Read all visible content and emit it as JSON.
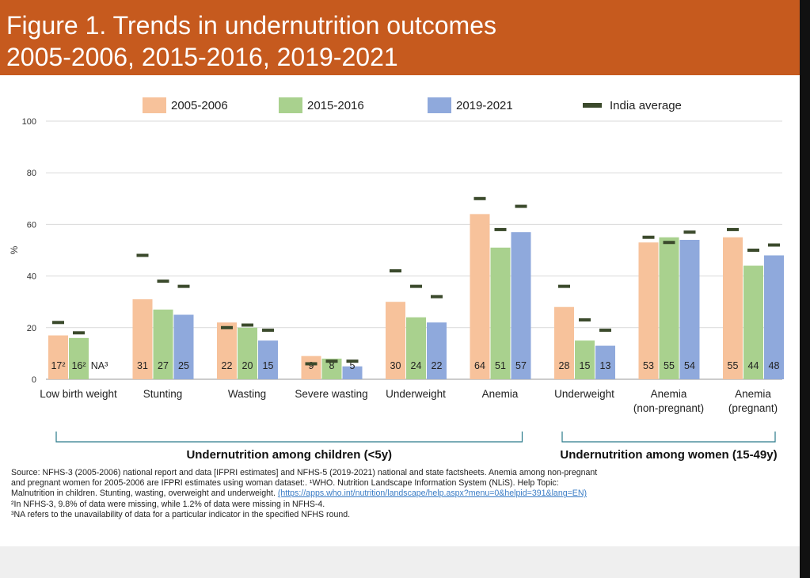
{
  "header": {
    "title_line1": "Figure 1. Trends in undernutrition outcomes",
    "title_line2": "2005-2006, 2015-2016, 2019-2021"
  },
  "chart_data": {
    "type": "bar",
    "ylabel": "%",
    "ylim": [
      0,
      100
    ],
    "yticks": [
      0,
      20,
      40,
      60,
      80,
      100
    ],
    "grid": true,
    "legend_position": "top",
    "series": [
      {
        "name": "2005-2006",
        "color": "#f7c29b"
      },
      {
        "name": "2015-2016",
        "color": "#a9d18e"
      },
      {
        "name": "2019-2021",
        "color": "#8fa9dc"
      }
    ],
    "average_marker": {
      "name": "India average",
      "color": "#3b4a2c"
    },
    "categories": [
      {
        "label": [
          "Low birth weight"
        ],
        "values": [
          17,
          16,
          null
        ],
        "value_labels": [
          "17²",
          "16²",
          "NA³"
        ],
        "india_average": [
          22,
          18,
          null
        ]
      },
      {
        "label": [
          "Stunting"
        ],
        "values": [
          31,
          27,
          25
        ],
        "value_labels": [
          "31",
          "27",
          "25"
        ],
        "india_average": [
          48,
          38,
          36
        ]
      },
      {
        "label": [
          "Wasting"
        ],
        "values": [
          22,
          20,
          15
        ],
        "value_labels": [
          "22",
          "20",
          "15"
        ],
        "india_average": [
          20,
          21,
          19
        ]
      },
      {
        "label": [
          "Severe wasting"
        ],
        "values": [
          9,
          8,
          5
        ],
        "value_labels": [
          "9",
          "8",
          "5"
        ],
        "india_average": [
          6,
          7,
          7
        ]
      },
      {
        "label": [
          "Underweight"
        ],
        "values": [
          30,
          24,
          22
        ],
        "value_labels": [
          "30",
          "24",
          "22"
        ],
        "india_average": [
          42,
          36,
          32
        ]
      },
      {
        "label": [
          "Anemia"
        ],
        "values": [
          64,
          51,
          57
        ],
        "value_labels": [
          "64",
          "51",
          "57"
        ],
        "india_average": [
          70,
          58,
          67
        ]
      },
      {
        "label": [
          "Underweight"
        ],
        "values": [
          28,
          15,
          13
        ],
        "value_labels": [
          "28",
          "15",
          "13"
        ],
        "india_average": [
          36,
          23,
          19
        ]
      },
      {
        "label": [
          "Anemia",
          "(non-pregnant)"
        ],
        "values": [
          53,
          55,
          54
        ],
        "value_labels": [
          "53",
          "55",
          "54"
        ],
        "india_average": [
          55,
          53,
          57
        ]
      },
      {
        "label": [
          "Anemia",
          "(pregnant)"
        ],
        "values": [
          55,
          44,
          48
        ],
        "value_labels": [
          "55",
          "44",
          "48"
        ],
        "india_average": [
          58,
          50,
          52
        ]
      }
    ],
    "groups": [
      {
        "label": "Undernutrition among children (<5y)",
        "categories": [
          0,
          5
        ]
      },
      {
        "label": "Undernutrition among women (15-49y)",
        "categories": [
          6,
          8
        ]
      }
    ]
  },
  "source": {
    "line1": "Source: NFHS-3 (2005-2006) national report and data [IFPRI estimates] and NFHS-5 (2019-2021) national and state factsheets. Anemia among non-pregnant",
    "line2": "and pregnant women for 2005-2006 are IFPRI estimates using woman dataset:. ¹WHO. Nutrition Landscape Information System (NLiS). Help Topic:",
    "line3": "Malnutrition in children. Stunting, wasting, overweight and underweight.",
    "link": "(https://apps.who.int/nutrition/landscape/help.aspx?menu=0&helpid=391&lang=EN)",
    "line4": "²In NFHS-3, 9.8% of data were missing, while 1.2% of data were missing in NFHS-4.",
    "line5": "³NA refers to the unavailability of data for a particular indicator in the specified NFHS round."
  }
}
